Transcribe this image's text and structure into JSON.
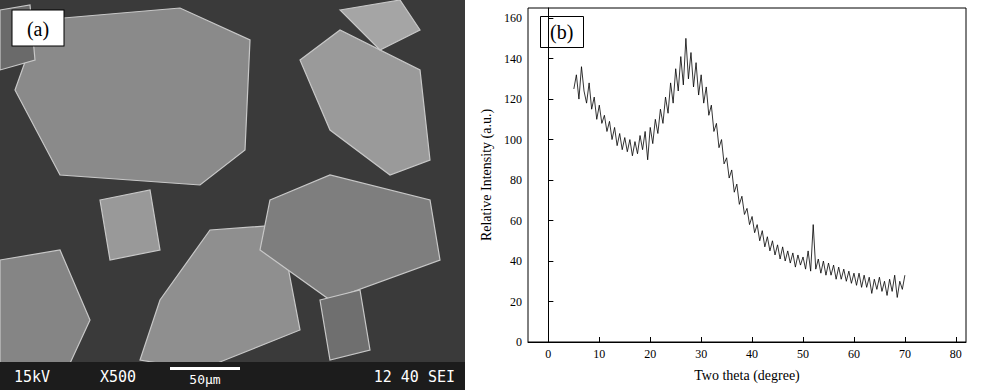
{
  "micrograph": {
    "label": "(a)",
    "voltage": "15kV",
    "magnification": "X500",
    "scale_bar": "50µm",
    "info": "12 40 SEI"
  },
  "chart_data": {
    "type": "line",
    "title": "(b)",
    "x_label": "Two theta (degree)",
    "y_label": "Relative Intensity (a.u.)",
    "xlim": [
      -4,
      82
    ],
    "xticks": [
      0,
      10,
      20,
      30,
      40,
      50,
      60,
      70,
      80
    ],
    "ylim": [
      0,
      165
    ],
    "yticks": [
      0,
      20,
      40,
      60,
      80,
      100,
      120,
      140,
      160
    ],
    "grid": false,
    "color": "#000000",
    "x": [
      5.0,
      5.5,
      6.0,
      6.5,
      7.0,
      7.5,
      8.0,
      8.5,
      9.0,
      9.5,
      10.0,
      10.5,
      11.0,
      11.5,
      12.0,
      12.5,
      13.0,
      13.5,
      14.0,
      14.5,
      15.0,
      15.5,
      16.0,
      16.5,
      17.0,
      17.5,
      18.0,
      18.5,
      19.0,
      19.5,
      20.0,
      20.5,
      21.0,
      21.5,
      22.0,
      22.5,
      23.0,
      23.5,
      24.0,
      24.5,
      25.0,
      25.5,
      26.0,
      26.5,
      27.0,
      27.5,
      28.0,
      28.5,
      29.0,
      29.5,
      30.0,
      30.5,
      31.0,
      31.5,
      32.0,
      32.5,
      33.0,
      33.5,
      34.0,
      34.5,
      35.0,
      35.5,
      36.0,
      36.5,
      37.0,
      37.5,
      38.0,
      38.5,
      39.0,
      39.5,
      40.0,
      40.5,
      41.0,
      41.5,
      42.0,
      42.5,
      43.0,
      43.5,
      44.0,
      44.5,
      45.0,
      45.5,
      46.0,
      46.5,
      47.0,
      47.5,
      48.0,
      48.5,
      49.0,
      49.5,
      50.0,
      50.5,
      51.0,
      51.5,
      52.0,
      52.5,
      53.0,
      53.5,
      54.0,
      54.5,
      55.0,
      55.5,
      56.0,
      56.5,
      57.0,
      57.5,
      58.0,
      58.5,
      59.0,
      59.5,
      60.0,
      60.5,
      61.0,
      61.5,
      62.0,
      62.5,
      63.0,
      63.5,
      64.0,
      64.5,
      65.0,
      65.5,
      66.0,
      66.5,
      67.0,
      67.5,
      68.0,
      68.5,
      69.0,
      69.5,
      70.0
    ],
    "values": [
      125,
      132,
      120,
      136,
      124,
      118,
      128,
      115,
      121,
      110,
      117,
      108,
      112,
      104,
      109,
      100,
      106,
      97,
      103,
      95,
      101,
      94,
      100,
      92,
      99,
      93,
      102,
      95,
      104,
      90,
      106,
      98,
      110,
      103,
      115,
      108,
      121,
      113,
      128,
      118,
      135,
      124,
      141,
      127,
      150,
      130,
      143,
      126,
      138,
      122,
      132,
      118,
      126,
      112,
      117,
      104,
      108,
      96,
      100,
      88,
      91,
      81,
      85,
      74,
      78,
      68,
      72,
      63,
      66,
      58,
      62,
      54,
      58,
      50,
      55,
      47,
      52,
      45,
      50,
      43,
      48,
      41,
      47,
      40,
      45,
      39,
      44,
      37,
      43,
      38,
      42,
      36,
      45,
      35,
      58,
      36,
      41,
      34,
      40,
      33,
      39,
      33,
      38,
      31,
      37,
      31,
      36,
      30,
      35,
      29,
      34,
      28,
      34,
      27,
      33,
      27,
      32,
      24,
      31,
      26,
      32,
      25,
      30,
      23,
      31,
      25,
      33,
      22,
      30,
      26,
      33
    ]
  }
}
